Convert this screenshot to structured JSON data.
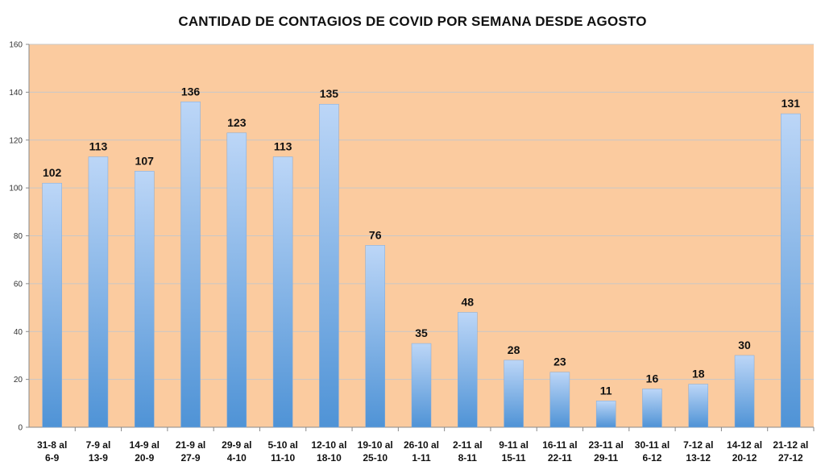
{
  "chart_data": {
    "type": "bar",
    "title": "CANTIDAD DE CONTAGIOS DE COVID POR SEMANA DESDE AGOSTO",
    "xlabel": "",
    "ylabel": "",
    "ylim": [
      0,
      160
    ],
    "yticks": [
      0,
      20,
      40,
      60,
      80,
      100,
      120,
      140,
      160
    ],
    "grid": true,
    "legend": "none",
    "categories": [
      [
        "31-8 al",
        "6-9"
      ],
      [
        "7-9 al",
        "13-9"
      ],
      [
        "14-9 al",
        "20-9"
      ],
      [
        "21-9 al",
        "27-9"
      ],
      [
        "29-9 al",
        "4-10"
      ],
      [
        "5-10 al",
        "11-10"
      ],
      [
        "12-10 al",
        "18-10"
      ],
      [
        "19-10 al",
        "25-10"
      ],
      [
        "26-10 al",
        "1-11"
      ],
      [
        "2-11 al",
        "8-11"
      ],
      [
        "9-11 al",
        "15-11"
      ],
      [
        "16-11 al",
        "22-11"
      ],
      [
        "23-11 al",
        "29-11"
      ],
      [
        "30-11 al",
        "6-12"
      ],
      [
        "7-12 al",
        "13-12"
      ],
      [
        "14-12 al",
        "20-12"
      ],
      [
        "21-12 al",
        "27-12"
      ]
    ],
    "values": [
      102,
      113,
      107,
      136,
      123,
      113,
      135,
      76,
      35,
      48,
      28,
      23,
      11,
      16,
      18,
      30,
      131
    ],
    "colors": {
      "plot_background": "#fbcb9f",
      "bar_top": "#bcd6f7",
      "bar_bottom": "#4f93d6",
      "gridline": "#c8c8c8",
      "axis": "#888888"
    }
  }
}
